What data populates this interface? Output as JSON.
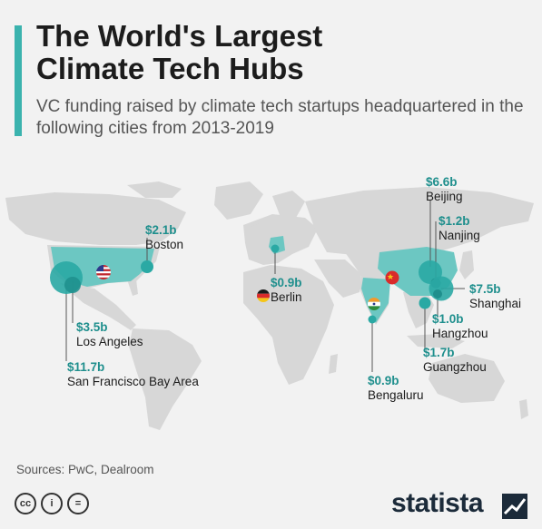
{
  "header": {
    "title": "The World's Largest Climate Tech Hubs",
    "subtitle": "VC funding raised by climate tech startups headquartered in the following cities from 2013-2019"
  },
  "hubs": [
    {
      "key": "san-francisco",
      "value": "$11.7b",
      "city": "San Francisco Bay Area"
    },
    {
      "key": "los-angeles",
      "value": "$3.5b",
      "city": "Los Angeles"
    },
    {
      "key": "boston",
      "value": "$2.1b",
      "city": "Boston"
    },
    {
      "key": "berlin",
      "value": "$0.9b",
      "city": "Berlin"
    },
    {
      "key": "bengaluru",
      "value": "$0.9b",
      "city": "Bengaluru"
    },
    {
      "key": "beijing",
      "value": "$6.6b",
      "city": "Beijing"
    },
    {
      "key": "nanjing",
      "value": "$1.2b",
      "city": "Nanjing"
    },
    {
      "key": "shanghai",
      "value": "$7.5b",
      "city": "Shanghai"
    },
    {
      "key": "hangzhou",
      "value": "$1.0b",
      "city": "Hangzhou"
    },
    {
      "key": "guangzhou",
      "value": "$1.7b",
      "city": "Guangzhou"
    }
  ],
  "footer": {
    "sources": "Sources: PwC, Dealroom",
    "brand": "statista",
    "license_icons": [
      "cc",
      "i",
      "="
    ]
  },
  "colors": {
    "accent": "#3bb3ae",
    "bubble": "#2aa9a4",
    "land": "#d7d7d7",
    "highlight": "#6cc7c2",
    "value_text": "#1f8f8d"
  }
}
